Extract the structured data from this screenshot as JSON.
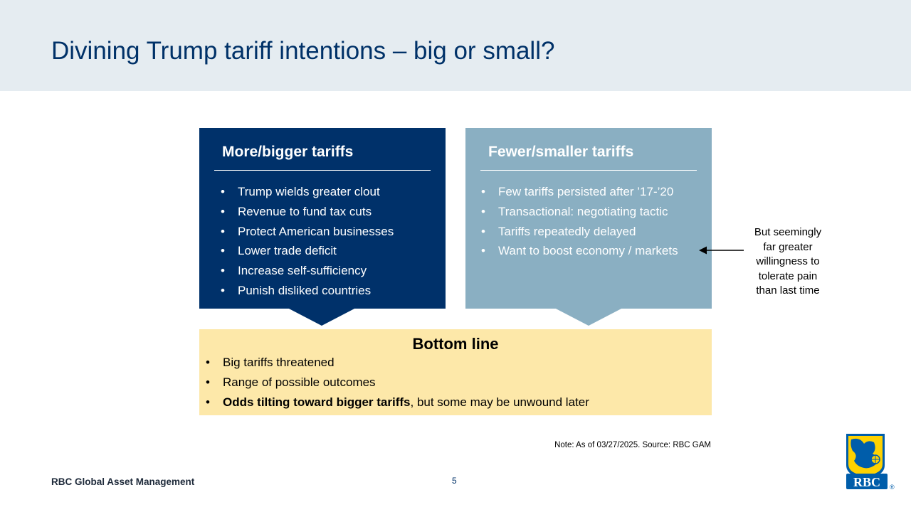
{
  "slide": {
    "title": "Divining Trump tariff intentions – big or small?",
    "page_number": "5",
    "brand": "RBC Global Asset Management",
    "note": "Note: As of 03/27/2025. Source: RBC GAM"
  },
  "left_box": {
    "heading": "More/bigger tariffs",
    "bullets": [
      "Trump wields greater clout",
      "Revenue to fund tax cuts",
      "Protect American businesses",
      "Lower trade deficit",
      "Increase self-sufficiency",
      "Punish disliked countries"
    ]
  },
  "right_box": {
    "heading": "Fewer/smaller tariffs",
    "bullets": [
      "Few tariffs persisted after ’17-’20",
      "Transactional: negotiating tactic",
      "Tariffs repeatedly delayed",
      "Want to boost economy / markets"
    ]
  },
  "annotation": {
    "lines": [
      "But seemingly",
      "far greater",
      "willingness to",
      "tolerate pain",
      "than last time"
    ]
  },
  "bottom_box": {
    "heading": "Bottom line",
    "bullets": [
      "Big tariffs threatened",
      "Range of possible outcomes"
    ],
    "last_bullet_bold": "Odds tilting toward bigger tariffs",
    "last_bullet_rest": ", but some may be unwound later"
  },
  "bullet_char": "•",
  "logo": {
    "text": "RBC",
    "registered": "®"
  },
  "colors": {
    "header_band": "#e5ecf1",
    "title": "#003168",
    "left_box": "#00316a",
    "right_box": "#8aafc2",
    "bottom_box": "#fde8a9",
    "logo_blue": "#005daa",
    "logo_yellow": "#ffd200"
  }
}
